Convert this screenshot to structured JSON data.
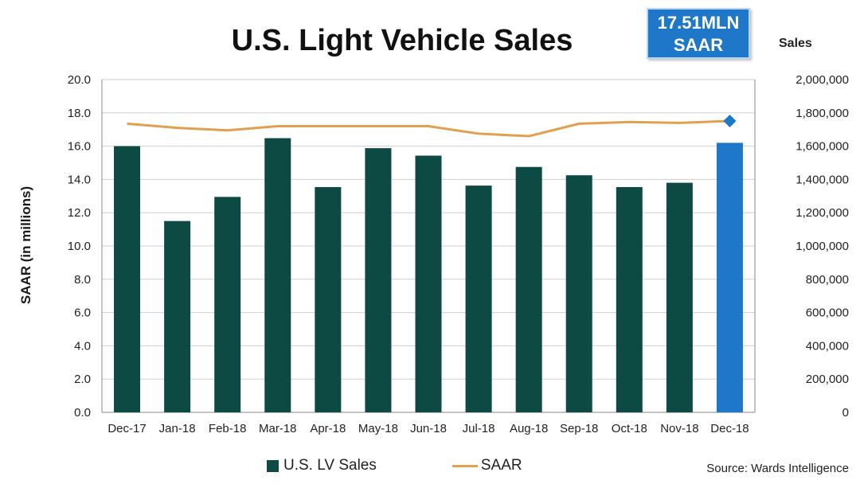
{
  "chart_data": {
    "type": "bar",
    "title": "U.S. Light Vehicle Sales",
    "badge": [
      "17.51MLN",
      "SAAR"
    ],
    "ylabel": "SAAR (in millions)",
    "y2label": "Sales",
    "source": "Source: Wards Intelligence",
    "categories": [
      "Dec-17",
      "Jan-18",
      "Feb-18",
      "Mar-18",
      "Apr-18",
      "May-18",
      "Jun-18",
      "Jul-18",
      "Aug-18",
      "Sep-18",
      "Oct-18",
      "Nov-18",
      "Dec-18"
    ],
    "y_ticks": [
      "0.0",
      "2.0",
      "4.0",
      "6.0",
      "8.0",
      "10.0",
      "12.0",
      "14.0",
      "16.0",
      "18.0",
      "20.0"
    ],
    "y2_ticks": [
      "0",
      "200,000",
      "400,000",
      "600,000",
      "800,000",
      "1,000,000",
      "1,200,000",
      "1,400,000",
      "1,600,000",
      "1,800,000",
      "2,000,000"
    ],
    "ylim": [
      0,
      20
    ],
    "y2lim": [
      0,
      2000000
    ],
    "series": [
      {
        "name": "U.S. LV Sales",
        "type": "bar",
        "axis": "right",
        "values": [
          1600000,
          1150000,
          1295000,
          1648000,
          1354000,
          1588000,
          1543000,
          1363000,
          1475000,
          1425000,
          1354000,
          1380000,
          1620000
        ],
        "color": "#0e4a44",
        "highlight_last_color": "#1e77c9"
      },
      {
        "name": "SAAR",
        "type": "line",
        "axis": "left",
        "values": [
          17.35,
          17.1,
          16.95,
          17.2,
          17.2,
          17.2,
          17.2,
          16.75,
          16.6,
          17.35,
          17.45,
          17.4,
          17.51
        ],
        "color": "#e0a050",
        "marker_last_color": "#1e77c9"
      }
    ],
    "grid": true,
    "legend": "bottom"
  }
}
